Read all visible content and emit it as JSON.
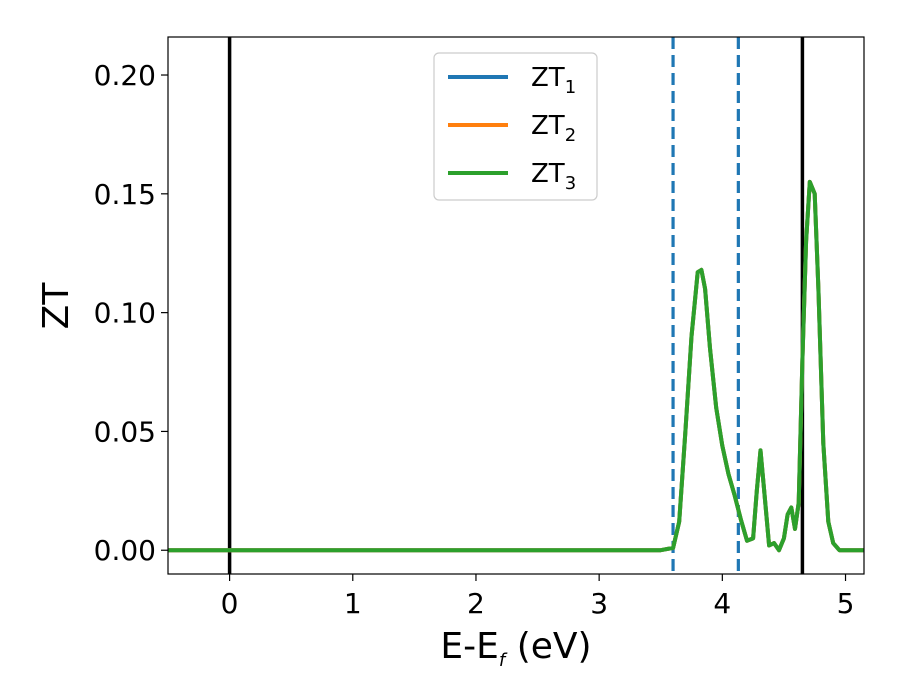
{
  "chart_data": {
    "type": "line",
    "xlabel": {
      "main": "E-E",
      "sub": "f",
      "unit": " (eV)"
    },
    "ylabel": "ZT",
    "xlim": [
      -0.5,
      5.15
    ],
    "ylim": [
      -0.01,
      0.216
    ],
    "xticks": [
      0,
      1,
      2,
      3,
      4,
      5
    ],
    "xtick_labels": [
      "0",
      "1",
      "2",
      "3",
      "4",
      "5"
    ],
    "yticks": [
      0.0,
      0.05,
      0.1,
      0.15,
      0.2
    ],
    "ytick_labels": [
      "0.00",
      "0.05",
      "0.10",
      "0.15",
      "0.20"
    ],
    "grid": false,
    "legend_position": "top-center",
    "vlines": [
      {
        "x": 0.0,
        "style": "solid",
        "color": "#000000"
      },
      {
        "x": 3.6,
        "style": "dashed",
        "color": "#1f77b4"
      },
      {
        "x": 4.13,
        "style": "dashed",
        "color": "#1f77b4"
      },
      {
        "x": 4.65,
        "style": "solid",
        "color": "#000000"
      }
    ],
    "x": [
      -0.5,
      3.5,
      3.6,
      3.65,
      3.7,
      3.75,
      3.8,
      3.83,
      3.86,
      3.9,
      3.95,
      4.0,
      4.05,
      4.1,
      4.15,
      4.2,
      4.25,
      4.28,
      4.31,
      4.34,
      4.38,
      4.42,
      4.46,
      4.5,
      4.53,
      4.56,
      4.59,
      4.62,
      4.65,
      4.68,
      4.71,
      4.75,
      4.78,
      4.82,
      4.86,
      4.9,
      4.95,
      5.0,
      5.15
    ],
    "series": [
      {
        "name": "ZT",
        "sub": "1",
        "color": "#1f77b4",
        "values": [
          0,
          0,
          0.001,
          0.012,
          0.05,
          0.09,
          0.117,
          0.118,
          0.11,
          0.085,
          0.06,
          0.044,
          0.032,
          0.023,
          0.013,
          0.004,
          0.005,
          0.025,
          0.042,
          0.025,
          0.002,
          0.003,
          0.0,
          0.005,
          0.015,
          0.018,
          0.009,
          0.02,
          0.08,
          0.13,
          0.155,
          0.15,
          0.11,
          0.045,
          0.012,
          0.003,
          0.0,
          0.0,
          0.0
        ]
      },
      {
        "name": "ZT",
        "sub": "2",
        "color": "#ff7f0e",
        "values": [
          0,
          0,
          0.001,
          0.012,
          0.05,
          0.09,
          0.117,
          0.118,
          0.11,
          0.085,
          0.06,
          0.044,
          0.032,
          0.023,
          0.013,
          0.004,
          0.005,
          0.025,
          0.042,
          0.025,
          0.002,
          0.003,
          0.0,
          0.005,
          0.015,
          0.018,
          0.009,
          0.02,
          0.08,
          0.13,
          0.155,
          0.15,
          0.11,
          0.045,
          0.012,
          0.003,
          0.0,
          0.0,
          0.0
        ]
      },
      {
        "name": "ZT",
        "sub": "3",
        "color": "#2ca02c",
        "values": [
          0,
          0,
          0.001,
          0.012,
          0.05,
          0.09,
          0.117,
          0.118,
          0.11,
          0.085,
          0.06,
          0.044,
          0.032,
          0.023,
          0.013,
          0.004,
          0.005,
          0.025,
          0.042,
          0.025,
          0.002,
          0.003,
          0.0,
          0.005,
          0.015,
          0.018,
          0.009,
          0.02,
          0.08,
          0.13,
          0.155,
          0.15,
          0.11,
          0.045,
          0.012,
          0.003,
          0.0,
          0.0,
          0.0
        ]
      }
    ]
  }
}
